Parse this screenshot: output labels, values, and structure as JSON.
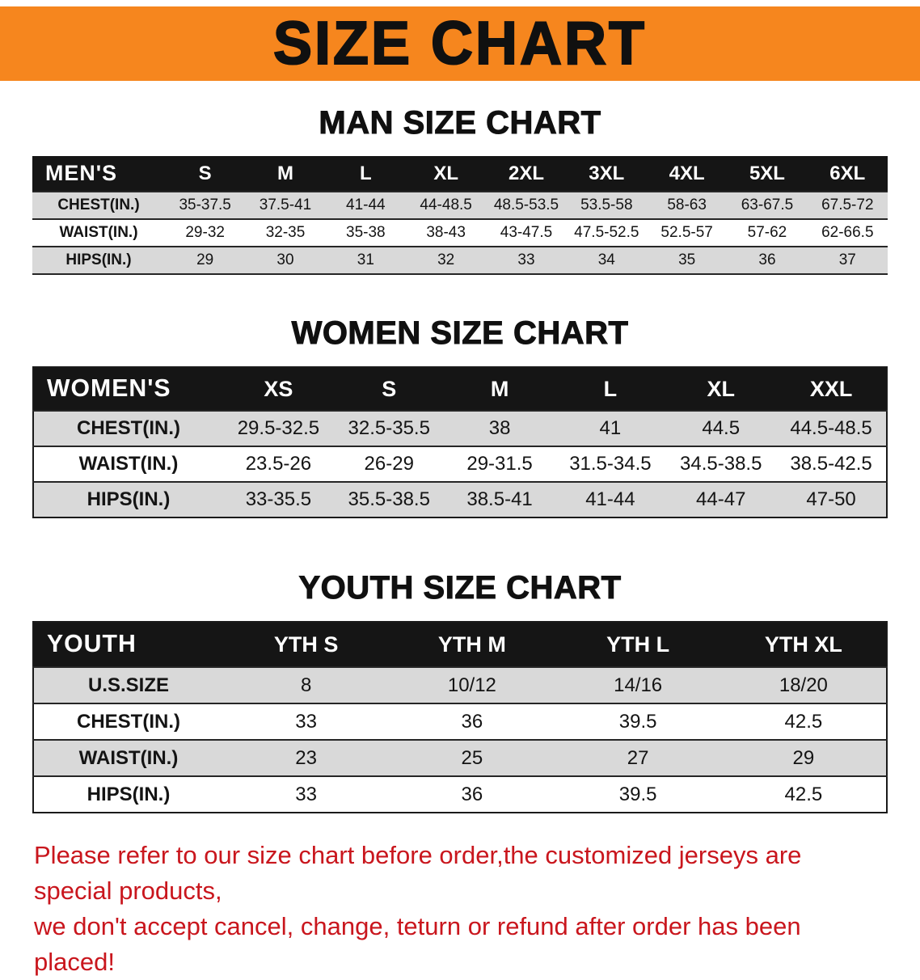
{
  "banner": {
    "title": "SIZE CHART",
    "bg_color": "#F6861E",
    "text_color": "#101010"
  },
  "chart_data": [
    {
      "type": "table",
      "title": "MAN SIZE CHART",
      "columns": [
        "MEN'S",
        "S",
        "M",
        "L",
        "XL",
        "2XL",
        "3XL",
        "4XL",
        "5XL",
        "6XL"
      ],
      "rows": [
        [
          "CHEST(IN.)",
          "35-37.5",
          "37.5-41",
          "41-44",
          "44-48.5",
          "48.5-53.5",
          "53.5-58",
          "58-63",
          "63-67.5",
          "67.5-72"
        ],
        [
          "WAIST(IN.)",
          "29-32",
          "32-35",
          "35-38",
          "38-43",
          "43-47.5",
          "47.5-52.5",
          "52.5-57",
          "57-62",
          "62-66.5"
        ],
        [
          "HIPS(IN.)",
          "29",
          "30",
          "31",
          "32",
          "33",
          "34",
          "35",
          "36",
          "37"
        ]
      ]
    },
    {
      "type": "table",
      "title": "WOMEN SIZE CHART",
      "columns": [
        "WOMEN'S",
        "XS",
        "S",
        "M",
        "L",
        "XL",
        "XXL"
      ],
      "rows": [
        [
          "CHEST(IN.)",
          "29.5-32.5",
          "32.5-35.5",
          "38",
          "41",
          "44.5",
          "44.5-48.5"
        ],
        [
          "WAIST(IN.)",
          "23.5-26",
          "26-29",
          "29-31.5",
          "31.5-34.5",
          "34.5-38.5",
          "38.5-42.5"
        ],
        [
          "HIPS(IN.)",
          "33-35.5",
          "35.5-38.5",
          "38.5-41",
          "41-44",
          "44-47",
          "47-50"
        ]
      ]
    },
    {
      "type": "table",
      "title": "YOUTH SIZE CHART",
      "columns": [
        "YOUTH",
        "YTH S",
        "YTH M",
        "YTH L",
        "YTH XL"
      ],
      "rows": [
        [
          "U.S.SIZE",
          "8",
          "10/12",
          "14/16",
          "18/20"
        ],
        [
          "CHEST(IN.)",
          "33",
          "36",
          "39.5",
          "42.5"
        ],
        [
          "WAIST(IN.)",
          "23",
          "25",
          "27",
          "29"
        ],
        [
          "HIPS(IN.)",
          "33",
          "36",
          "39.5",
          "42.5"
        ]
      ]
    }
  ],
  "footer": {
    "lines": [
      "Please refer to our size chart before order,the customized jerseys are special products,",
      "we don't accept cancel, change, teturn or refund after order has been placed!"
    ],
    "text_color": "#C9161D"
  },
  "colors": {
    "banner_bg": "#F6861E",
    "table_header_bg": "#151515",
    "table_header_text": "#FFFFFF",
    "row_shade": "#D9D9D9",
    "disclaimer_red": "#C9161D"
  }
}
